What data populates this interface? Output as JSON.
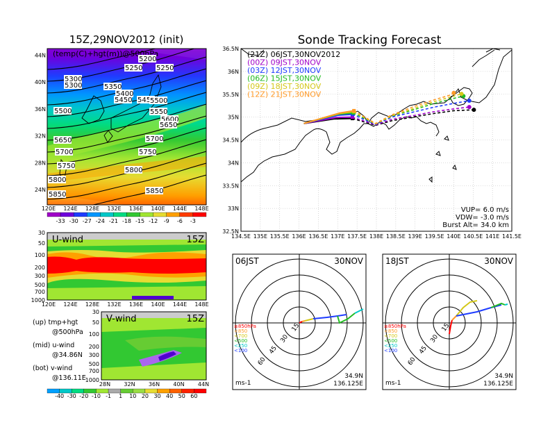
{
  "chart_data": [
    {
      "type": "heatmap",
      "title": "15Z,29NOV2012 (init)",
      "subtitle": "(temp(C)+hgt(m))@500hPa",
      "x_ticks": [
        "120E",
        "124E",
        "128E",
        "132E",
        "136E",
        "140E",
        "144E",
        "148E"
      ],
      "y_ticks": [
        "24N",
        "28N",
        "32N",
        "36N",
        "40N",
        "44N"
      ],
      "contour_labels": [
        "5200",
        "5250",
        "5250",
        "5300",
        "5300",
        "5350",
        "5400",
        "5450",
        "5450",
        "5500",
        "5500",
        "5550",
        "5600",
        "5650",
        "5650",
        "5700",
        "5700",
        "5750",
        "5750",
        "5800",
        "5800",
        "5850",
        "5850"
      ],
      "colorbar_labels": [
        "-33",
        "-30",
        "-27",
        "-24",
        "-21",
        "-18",
        "-15",
        "-12",
        "-9",
        "-6",
        "-3"
      ],
      "colorbar_colors": [
        "#a000c8",
        "#6e00dc",
        "#1e3cff",
        "#0096ff",
        "#00c8c8",
        "#00dc82",
        "#32c832",
        "#a0e632",
        "#e6dc32",
        "#ffa000",
        "#ff3c00",
        "#ff0000"
      ]
    },
    {
      "type": "heatmap",
      "title": "U-wind",
      "time_label": "15Z",
      "x_ticks": [
        "120E",
        "124E",
        "128E",
        "132E",
        "136E",
        "140E",
        "144E",
        "148E"
      ],
      "y_ticks": [
        "30",
        "50",
        "100",
        "200",
        "300",
        "500",
        "700",
        "1000"
      ]
    },
    {
      "type": "heatmap",
      "title": "V-wind",
      "time_label": "15Z",
      "x_ticks": [
        "28N",
        "32N",
        "36N",
        "40N",
        "44N"
      ],
      "y_ticks": [
        "30",
        "50",
        "100",
        "200",
        "300",
        "500",
        "700",
        "1000"
      ],
      "colorbar_labels": [
        "-40",
        "-30",
        "-20",
        "-10",
        "-1",
        "1",
        "10",
        "20",
        "30",
        "40",
        "50",
        "60"
      ],
      "colorbar_colors": [
        "#00a0ff",
        "#00c8c8",
        "#00dc82",
        "#32c832",
        "#a0e632",
        "#aaaaaa",
        "#66cc33",
        "#99dd44",
        "#e6dc32",
        "#ffa000",
        "#ff6000",
        "#ff2000",
        "#ff0000"
      ]
    },
    {
      "type": "line",
      "title": "Sonde Tracking Forecast",
      "x_ticks": [
        "134.5E",
        "135E",
        "135.5E",
        "136E",
        "136.5E",
        "137E",
        "137.5E",
        "138E",
        "138.5E",
        "139E",
        "139.5E",
        "140E",
        "140.5E",
        "141E",
        "141.5E"
      ],
      "y_ticks": [
        "32.5N",
        "33N",
        "33.5N",
        "34N",
        "34.5N",
        "35N",
        "35.5N",
        "36N",
        "36.5N"
      ],
      "xlim": [
        134.5,
        141.5
      ],
      "ylim": [
        32.5,
        36.5
      ],
      "grid": true,
      "launch": [
        136.125,
        34.86
      ],
      "series": [
        {
          "name": "(21Z)  06JST,30NOV2012",
          "color": "#000000",
          "points": [
            [
              136.125,
              34.86
            ],
            [
              136.9,
              34.96
            ],
            [
              137.38,
              34.97
            ],
            [
              137.98,
              34.82
            ],
            [
              138.4,
              34.92
            ],
            [
              139.0,
              35.01
            ],
            [
              139.5,
              35.08
            ],
            [
              140.0,
              35.14
            ],
            [
              140.52,
              35.16
            ]
          ]
        },
        {
          "name": "(00Z)  09JST,30NOV",
          "color": "#a000c8",
          "points": [
            [
              136.125,
              34.86
            ],
            [
              136.95,
              34.99
            ],
            [
              137.38,
              35.0
            ],
            [
              137.98,
              34.83
            ],
            [
              138.4,
              34.95
            ],
            [
              139.0,
              35.04
            ],
            [
              139.5,
              35.12
            ],
            [
              140.0,
              35.18
            ],
            [
              140.4,
              35.22
            ]
          ]
        },
        {
          "name": "(03Z)  12JST,30NOV",
          "color": "#1e3cff",
          "points": [
            [
              136.125,
              34.86
            ],
            [
              137.0,
              35.04
            ],
            [
              137.38,
              35.06
            ],
            [
              137.98,
              34.84
            ],
            [
              138.4,
              35.0
            ],
            [
              139.0,
              35.12
            ],
            [
              139.5,
              35.22
            ],
            [
              140.0,
              35.3
            ],
            [
              140.4,
              35.36
            ]
          ]
        },
        {
          "name": "(06Z)  15JST,30NOV",
          "color": "#22bb22",
          "points": [
            [
              136.125,
              34.86
            ],
            [
              137.0,
              35.06
            ],
            [
              137.4,
              35.09
            ],
            [
              137.98,
              34.85
            ],
            [
              138.4,
              35.02
            ],
            [
              139.0,
              35.17
            ],
            [
              139.5,
              35.3
            ],
            [
              140.0,
              35.41
            ],
            [
              140.25,
              35.46
            ]
          ]
        },
        {
          "name": "(09Z)  18JST,30NOV",
          "color": "#d4c818",
          "points": [
            [
              136.125,
              34.86
            ],
            [
              137.05,
              35.08
            ],
            [
              137.42,
              35.12
            ],
            [
              137.98,
              34.85
            ],
            [
              138.4,
              35.03
            ],
            [
              139.0,
              35.2
            ],
            [
              139.5,
              35.34
            ],
            [
              140.0,
              35.46
            ],
            [
              140.2,
              35.51
            ]
          ]
        },
        {
          "name": "(12Z)  21JST,30NOV",
          "color": "#ff9a28",
          "points": [
            [
              136.125,
              34.86
            ],
            [
              137.05,
              35.09
            ],
            [
              137.42,
              35.14
            ],
            [
              137.98,
              34.86
            ],
            [
              138.4,
              35.05
            ],
            [
              139.0,
              35.24
            ],
            [
              139.5,
              35.38
            ],
            [
              139.9,
              35.48
            ],
            [
              140.0,
              35.53
            ]
          ]
        }
      ],
      "annotations": [
        "VUP=  6.0  m/s",
        "VDW= -3.0  m/s",
        "Burst Alt=  34.0  km"
      ]
    },
    {
      "type": "line",
      "title": "06JST",
      "date": "30NOV",
      "ring_labels": [
        "15",
        "30",
        "45",
        "60"
      ],
      "speed_unit": "ms-1",
      "legend": [
        {
          "label": "≥850hPa",
          "color": "#ff0000"
        },
        {
          "label": "<850",
          "color": "#ff9a28"
        },
        {
          "label": "<700",
          "color": "#d4c818"
        },
        {
          "label": "<500",
          "color": "#22bb22"
        },
        {
          "label": "<250",
          "color": "#00c8c8"
        },
        {
          "label": "<100",
          "color": "#1e3cff"
        }
      ],
      "location": [
        "34.9N",
        "136.125E"
      ]
    },
    {
      "type": "line",
      "title": "18JST",
      "date": "30NOV",
      "ring_labels": [
        "15",
        "30",
        "45",
        "60"
      ],
      "speed_unit": "ms-1",
      "legend": [
        {
          "label": "≥850hPa",
          "color": "#ff0000"
        },
        {
          "label": "<850",
          "color": "#ff9a28"
        },
        {
          "label": "<700",
          "color": "#d4c818"
        },
        {
          "label": "<500",
          "color": "#22bb22"
        },
        {
          "label": "<250",
          "color": "#00c8c8"
        },
        {
          "label": "<100",
          "color": "#1e3cff"
        }
      ],
      "location": [
        "34.9N",
        "136.125E"
      ]
    }
  ],
  "notes": {
    "up": "(up)  tmp+hgt",
    "up2": "@500hPa",
    "mid": "(mid)  u-wind",
    "mid2": "@34.86N",
    "bot": "(bot)  v-wind",
    "bot2": "@136.11E"
  }
}
